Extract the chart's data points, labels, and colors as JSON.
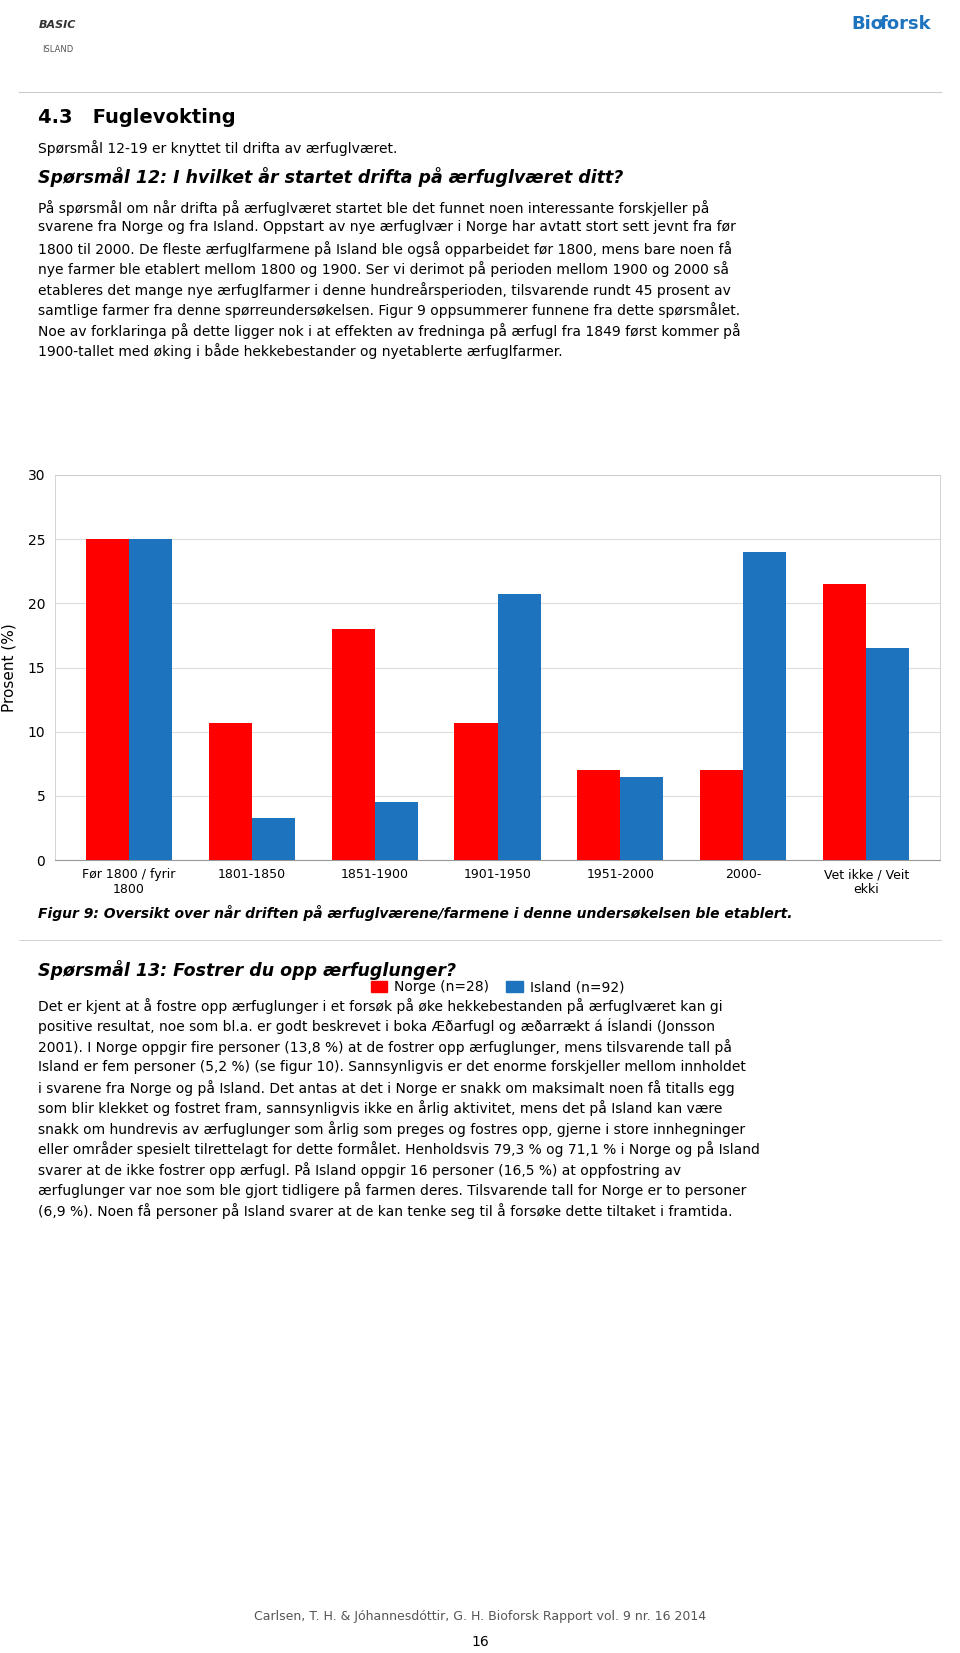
{
  "categories": [
    "Før 1800 / fyrir\n1800",
    "1801-1850",
    "1851-1900",
    "1901-1950",
    "1951-2000",
    "2000-",
    "Vet ikke / Veit\nekki"
  ],
  "norge_values": [
    25.0,
    10.7,
    18.0,
    10.7,
    7.0,
    7.0,
    21.5
  ],
  "island_values": [
    25.0,
    3.3,
    4.5,
    20.7,
    6.5,
    24.0,
    16.5
  ],
  "norge_color": "#FF0000",
  "island_color": "#1E73BE",
  "ylabel": "Prosent (%)",
  "ylim": [
    0,
    30
  ],
  "yticks": [
    0,
    5,
    10,
    15,
    20,
    25,
    30
  ],
  "legend_norge": "Norge (n=28)",
  "legend_island": "Island (n=92)",
  "figure_caption": "Figur 9: Oversikt over når driften på ærfuglværene/farmene i denne undersøkelsen ble etablert.",
  "background_color": "#FFFFFF",
  "bar_width": 0.35,
  "title_section": "4.3   Fuglevokting",
  "subtitle_section": "Spørsmål 12-19 er knyttet til drifta av ærfuglværet.",
  "q12_heading": "Spørsmål 12: I hvilket år startet drifta på ærfuglværet ditt?",
  "q12_body_lines": [
    "På spørsmål om når drifta på ærfuglværet startet ble det funnet noen interessante forskjeller på",
    "svarene fra Norge og fra Island. Oppstart av nye ærfuglvær i Norge har avtatt stort sett jevnt fra før",
    "1800 til 2000. De fleste ærfuglfarmene på Island ble også opparbeidet før 1800, mens bare noen få",
    "nye farmer ble etablert mellom 1800 og 1900. Ser vi derimot på perioden mellom 1900 og 2000 så",
    "etableres det mange nye ærfuglfarmer i denne hundreårsperioden, tilsvarende rundt 45 prosent av",
    "samtlige farmer fra denne spørreundersøkelsen. Figur 9 oppsummerer funnene fra dette spørsmålet.",
    "Noe av forklaringa på dette ligger nok i at effekten av fredninga på ærfugl fra 1849 først kommer på",
    "1900-tallet med øking i både hekkebestander og nyetablerte ærfuglfarmer."
  ],
  "q13_heading": "Spørsmål 13: Fostrer du opp ærfuglunger?",
  "q13_body_lines": [
    "Det er kjent at å fostre opp ærfuglunger i et forsøk på øke hekkebestanden på ærfuglværet kan gi",
    "positive resultat, noe som bl.a. er godt beskrevet i boka Æðarfugl og æðarrækt á Íslandi (Jonsson",
    "2001). I Norge oppgir fire personer (13,8 %) at de fostrer opp ærfuglunger, mens tilsvarende tall på",
    "Island er fem personer (5,2 %) (se figur 10). Sannsynligvis er det enorme forskjeller mellom innholdet",
    "i svarene fra Norge og på Island. Det antas at det i Norge er snakk om maksimalt noen få titalls egg",
    "som blir klekket og fostret fram, sannsynligvis ikke en årlig aktivitet, mens det på Island kan være",
    "snakk om hundrevis av ærfuglunger som årlig som preges og fostres opp, gjerne i store innhegninger",
    "eller områder spesielt tilrettelagt for dette formålet. Henholdsvis 79,3 % og 71,1 % i Norge og på Island",
    "svarer at de ikke fostrer opp ærfugl. På Island oppgir 16 personer (16,5 %) at oppfostring av",
    "ærfuglunger var noe som ble gjort tidligere på farmen deres. Tilsvarende tall for Norge er to personer",
    "(6,9 %). Noen få personer på Island svarer at de kan tenke seg til å forsøke dette tiltaket i framtida."
  ],
  "footer": "Carlsen, T. H. & Jóhannesdóttir, G. H. Bioforsk Rapport vol. 9 nr. 16 2014",
  "page_number": "16"
}
